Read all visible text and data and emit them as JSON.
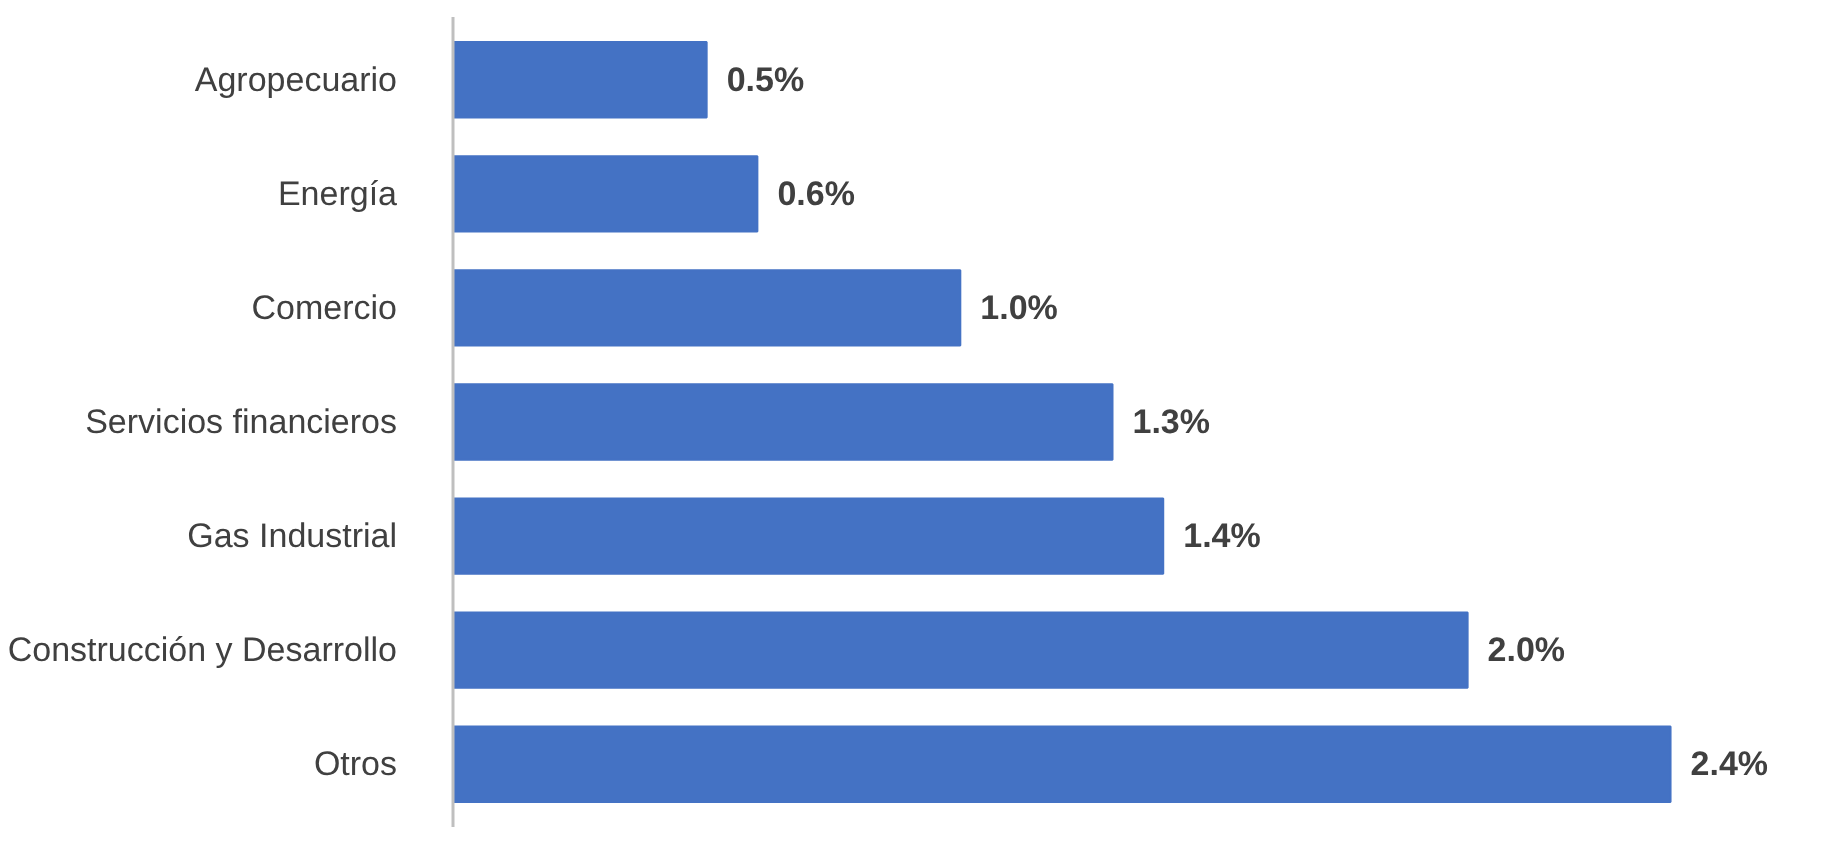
{
  "chart_data": {
    "type": "bar",
    "orientation": "horizontal",
    "categories": [
      "Agropecuario",
      "Energía",
      "Comercio",
      "Servicios financieros",
      "Gas Industrial",
      "Construcción y Desarrollo",
      "Otros"
    ],
    "values": [
      0.5,
      0.6,
      1.0,
      1.3,
      1.4,
      2.0,
      2.4
    ],
    "value_labels": [
      "0.5%",
      "0.6%",
      "1.0%",
      "1.3%",
      "1.4%",
      "2.0%",
      "2.4%"
    ],
    "color": "#4472c4"
  }
}
